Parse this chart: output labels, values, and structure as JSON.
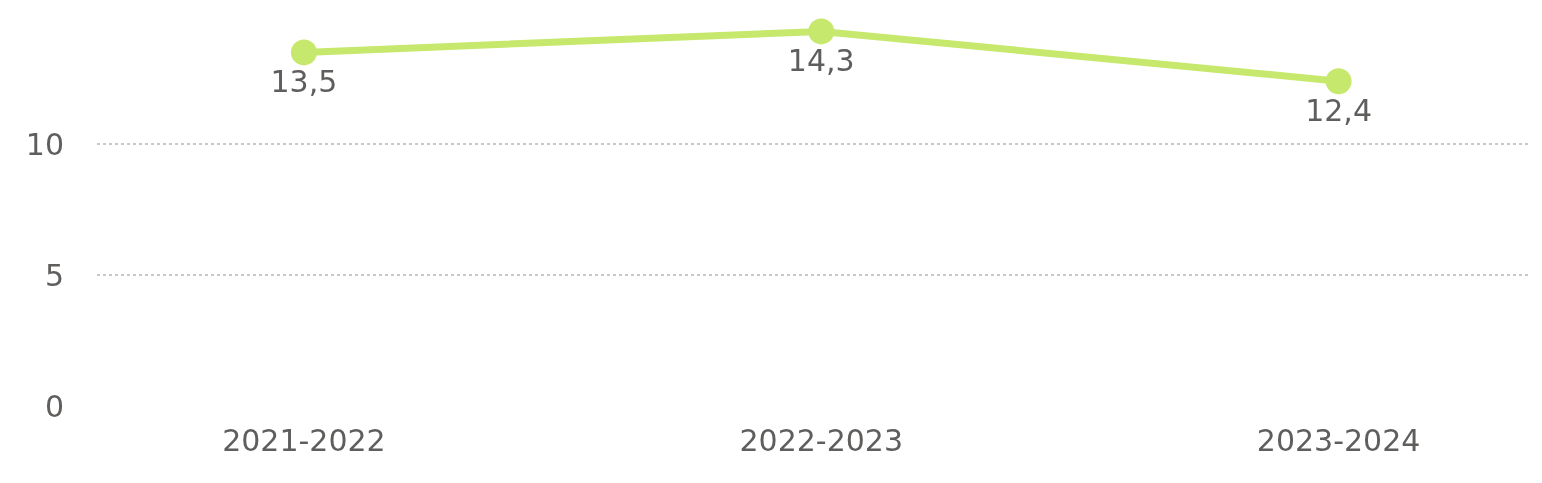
{
  "chart_data": {
    "type": "line",
    "categories": [
      "2021-2022",
      "2022-2023",
      "2023-2024"
    ],
    "series": [
      {
        "color": "#c6e86c",
        "values": [
          13.5,
          14.3,
          12.4
        ],
        "value_labels": [
          "13,5",
          "14,3",
          "12,4"
        ]
      }
    ],
    "ylim": [
      0,
      15.5
    ],
    "yticks": [
      0,
      5,
      10
    ],
    "grid": "y",
    "marker": "circle",
    "line_style": "solid"
  }
}
